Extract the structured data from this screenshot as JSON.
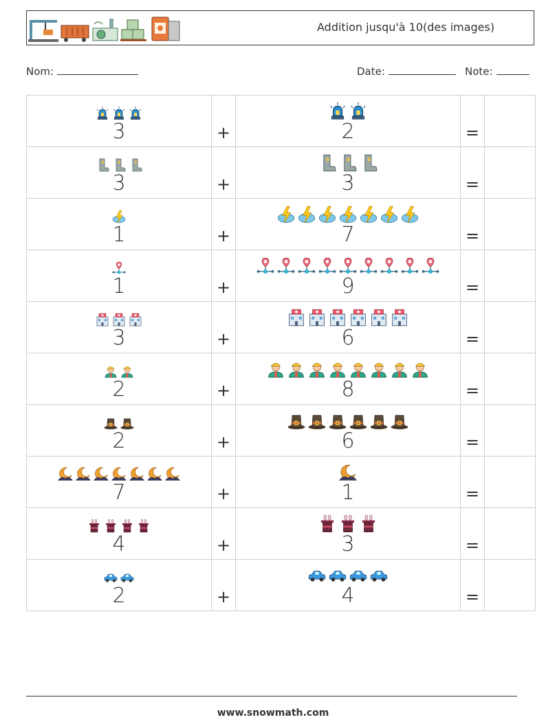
{
  "header": {
    "title": "Addition jusqu'à 10(des images)",
    "icons": [
      "crane-icon",
      "freight-car-icon",
      "factory-icon",
      "warehouse-icon",
      "oil-barrel-icon"
    ]
  },
  "info": {
    "name_label": "Nom:",
    "date_label": "Date:",
    "note_label": "Note:"
  },
  "symbols": {
    "plus": "+",
    "equals": "="
  },
  "problems": [
    {
      "a": "3",
      "b": "2",
      "icon": "siren-icon"
    },
    {
      "a": "3",
      "b": "3",
      "icon": "rubber-boot-icon"
    },
    {
      "a": "1",
      "b": "7",
      "icon": "thunder-cloud-icon"
    },
    {
      "a": "1",
      "b": "9",
      "icon": "location-network-icon"
    },
    {
      "a": "3",
      "b": "6",
      "icon": "hospital-building-icon"
    },
    {
      "a": "2",
      "b": "8",
      "icon": "worker-icon"
    },
    {
      "a": "2",
      "b": "6",
      "icon": "pilgrim-hat-icon"
    },
    {
      "a": "7",
      "b": "1",
      "icon": "moon-night-icon"
    },
    {
      "a": "4",
      "b": "3",
      "icon": "magic-hat-rabbit-icon"
    },
    {
      "a": "2",
      "b": "4",
      "icon": "car-icon"
    }
  ],
  "footer": {
    "website": "www.snowmath.com"
  }
}
